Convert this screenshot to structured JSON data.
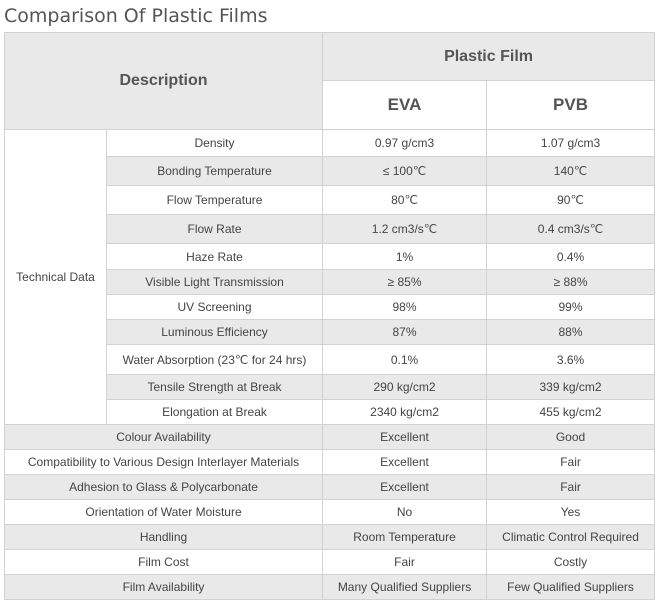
{
  "title": "Comparison Of Plastic Films",
  "header": {
    "description": "Description",
    "group": "Plastic Film",
    "col1": "EVA",
    "col2": "PVB"
  },
  "technical_label": "Technical Data",
  "technical_rows": [
    {
      "property": "Density",
      "eva": "0.97 g/cm3",
      "pvb": "1.07 g/cm3"
    },
    {
      "property": "Bonding Temperature",
      "eva": "≤ 100℃",
      "pvb": "140℃"
    },
    {
      "property": "Flow Temperature",
      "eva": "80℃",
      "pvb": "90℃"
    },
    {
      "property": "Flow Rate",
      "eva": "1.2 cm3/s℃",
      "pvb": "0.4 cm3/s℃"
    },
    {
      "property": "Haze Rate",
      "eva": "1%",
      "pvb": "0.4%"
    },
    {
      "property": "Visible Light Transmission",
      "eva": "≥ 85%",
      "pvb": "≥ 88%"
    },
    {
      "property": "UV Screening",
      "eva": "98%",
      "pvb": "99%"
    },
    {
      "property": "Luminous Efficiency",
      "eva": "87%",
      "pvb": "88%"
    },
    {
      "property": "Water Absorption (23℃ for 24 hrs)",
      "eva": "0.1%",
      "pvb": "3.6%"
    },
    {
      "property": "Tensile Strength at Break",
      "eva": "290 kg/cm2",
      "pvb": "339 kg/cm2"
    },
    {
      "property": "Elongation at Break",
      "eva": "2340 kg/cm2",
      "pvb": "455 kg/cm2"
    }
  ],
  "general_rows": [
    {
      "property": "Colour Availability",
      "eva": "Excellent",
      "pvb": "Good"
    },
    {
      "property": "Compatibility to Various Design Interlayer Materials",
      "eva": "Excellent",
      "pvb": "Fair"
    },
    {
      "property": "Adhesion to Glass & Polycarbonate",
      "eva": "Excellent",
      "pvb": "Fair"
    },
    {
      "property": "Orientation of Water Moisture",
      "eva": "No",
      "pvb": "Yes"
    },
    {
      "property": "Handling",
      "eva": "Room Temperature",
      "pvb": "Climatic Control Required"
    },
    {
      "property": "Film Cost",
      "eva": "Fair",
      "pvb": "Costly"
    },
    {
      "property": "Film Availability",
      "eva": "Many Qualified Suppliers",
      "pvb": "Few Qualified Suppliers"
    }
  ]
}
